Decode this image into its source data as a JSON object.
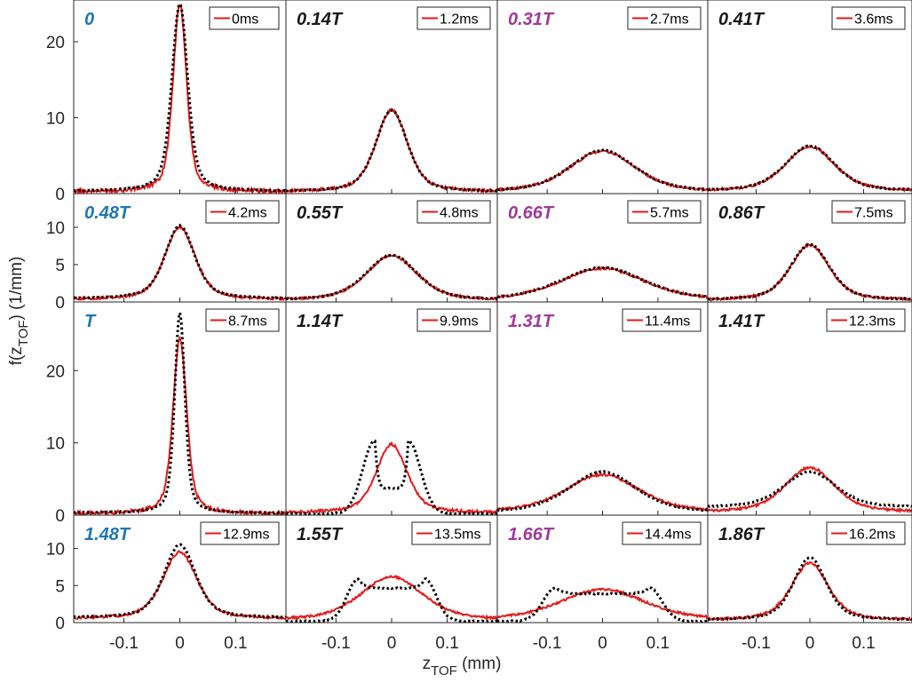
{
  "chart_data": {
    "type": "line",
    "xlabel": "z",
    "xlabel_sub": "TOF",
    "xlabel_unit": " (mm)",
    "ylabel": "f(z",
    "ylabel_sub": "TOF",
    "ylabel_unit": ") (1/mm)",
    "xlim": [
      -0.19,
      0.19
    ],
    "x_ticks": [
      -0.1,
      0,
      0.1
    ],
    "x_tick_labels": [
      "-0.1",
      "0",
      "0.1"
    ],
    "rows": [
      {
        "ylim": [
          0,
          25.5
        ],
        "y_ticks": [
          0,
          10,
          20
        ],
        "y_tick_labels": [
          "0",
          "10",
          "20"
        ]
      },
      {
        "ylim": [
          0,
          14.5
        ],
        "y_ticks": [
          0,
          5,
          10
        ],
        "y_tick_labels": [
          "0",
          "5",
          "10"
        ]
      },
      {
        "ylim": [
          0,
          29.5
        ],
        "y_ticks": [
          0,
          10,
          20
        ],
        "y_tick_labels": [
          "0",
          "10",
          "20"
        ]
      },
      {
        "ylim": [
          0,
          14.5
        ],
        "y_ticks": [
          0,
          5,
          10
        ],
        "y_tick_labels": [
          "0",
          "5",
          "10"
        ]
      }
    ],
    "series_style": {
      "measured": {
        "color": "#e31a1c",
        "dash": "none"
      },
      "simulated": {
        "color": "#000000",
        "dash": "dotted"
      }
    },
    "label_colors": {
      "blue": "#1f77b4",
      "black": "#1a1a1a",
      "purple": "#a0399a"
    },
    "panels": [
      {
        "row": 0,
        "col": 0,
        "label": "0",
        "label_color": "blue",
        "legend": "0ms",
        "meas": {
          "peak": 25,
          "width": 0.012,
          "base": 0.25
        },
        "sim": {
          "peak": 25,
          "width": 0.014,
          "base": 0.3
        }
      },
      {
        "row": 0,
        "col": 1,
        "label": "0.14T",
        "label_color": "black",
        "legend": "1.2ms",
        "meas": {
          "peak": 11,
          "width": 0.028,
          "base": 0.2
        },
        "sim": {
          "peak": 11,
          "width": 0.028,
          "base": 0.2
        }
      },
      {
        "row": 0,
        "col": 2,
        "label": "0.31T",
        "label_color": "purple",
        "legend": "2.7ms",
        "meas": {
          "peak": 5.6,
          "width": 0.058,
          "base": 0.2
        },
        "sim": {
          "peak": 5.7,
          "width": 0.058,
          "base": 0.2
        }
      },
      {
        "row": 0,
        "col": 3,
        "label": "0.41T",
        "label_color": "black",
        "legend": "3.6ms",
        "meas": {
          "peak": 6.2,
          "width": 0.045,
          "base": 0.3
        },
        "sim": {
          "peak": 6.3,
          "width": 0.045,
          "base": 0.3
        }
      },
      {
        "row": 1,
        "col": 0,
        "label": "0.48T",
        "label_color": "blue",
        "legend": "4.2ms",
        "meas": {
          "peak": 10,
          "width": 0.027,
          "base": 0.3
        },
        "sim": {
          "peak": 10.2,
          "width": 0.026,
          "base": 0.4
        }
      },
      {
        "row": 1,
        "col": 1,
        "label": "0.55T",
        "label_color": "black",
        "legend": "4.8ms",
        "meas": {
          "peak": 6.2,
          "width": 0.045,
          "base": 0.2
        },
        "sim": {
          "peak": 6.3,
          "width": 0.045,
          "base": 0.2
        }
      },
      {
        "row": 1,
        "col": 2,
        "label": "0.66T",
        "label_color": "purple",
        "legend": "5.7ms",
        "meas": {
          "peak": 4.5,
          "width": 0.075,
          "base": 0.2
        },
        "sim": {
          "peak": 4.6,
          "width": 0.075,
          "base": 0.2
        }
      },
      {
        "row": 1,
        "col": 3,
        "label": "0.86T",
        "label_color": "black",
        "legend": "7.5ms",
        "meas": {
          "peak": 7.6,
          "width": 0.036,
          "base": 0.2
        },
        "sim": {
          "peak": 7.7,
          "width": 0.036,
          "base": 0.2
        }
      },
      {
        "row": 2,
        "col": 0,
        "label": "T",
        "label_color": "blue",
        "legend": "8.7ms",
        "meas": {
          "peak": 24.5,
          "width": 0.012,
          "base": 0.2
        },
        "sim": {
          "peak": 28,
          "width": 0.009,
          "base": 0.3
        }
      },
      {
        "row": 2,
        "col": 1,
        "label": "1.14T",
        "label_color": "black",
        "legend": "9.9ms",
        "meas": {
          "peak": 9.8,
          "width": 0.027,
          "base": 0.3
        },
        "sim": {
          "peak": 10.3,
          "width": 0.022,
          "base": 0.2,
          "flat_half": 0.03,
          "shoulder": 0.35
        }
      },
      {
        "row": 2,
        "col": 2,
        "label": "1.31T",
        "label_color": "purple",
        "legend": "11.4ms",
        "meas": {
          "peak": 5.6,
          "width": 0.065,
          "base": 0.4
        },
        "sim": {
          "peak": 6.0,
          "width": 0.06,
          "base": 0.3
        }
      },
      {
        "row": 2,
        "col": 3,
        "label": "1.41T",
        "label_color": "black",
        "legend": "12.3ms",
        "meas": {
          "peak": 6.6,
          "width": 0.045,
          "base": 0.4
        },
        "sim": {
          "peak": 6.0,
          "width": 0.048,
          "base": 1.0
        }
      },
      {
        "row": 3,
        "col": 0,
        "label": "1.48T",
        "label_color": "blue",
        "legend": "12.9ms",
        "meas": {
          "peak": 9.5,
          "width": 0.03,
          "base": 0.5
        },
        "sim": {
          "peak": 10.5,
          "width": 0.028,
          "base": 0.6
        }
      },
      {
        "row": 3,
        "col": 1,
        "label": "1.55T",
        "label_color": "black",
        "legend": "13.5ms",
        "meas": {
          "peak": 6.2,
          "width": 0.055,
          "base": 0.3
        },
        "sim": {
          "peak": 5.9,
          "width": 0.02,
          "base": 0.2,
          "flat_half": 0.06,
          "shoulder": 0.78
        }
      },
      {
        "row": 3,
        "col": 2,
        "label": "1.66T",
        "label_color": "purple",
        "legend": "14.4ms",
        "meas": {
          "peak": 4.5,
          "width": 0.075,
          "base": 0.3
        },
        "sim": {
          "peak": 4.7,
          "width": 0.022,
          "base": 0.2,
          "flat_half": 0.085,
          "shoulder": 0.82
        }
      },
      {
        "row": 3,
        "col": 3,
        "label": "1.86T",
        "label_color": "black",
        "legend": "16.2ms",
        "meas": {
          "peak": 8.0,
          "width": 0.034,
          "base": 0.3
        },
        "sim": {
          "peak": 8.8,
          "width": 0.03,
          "base": 0.3
        }
      }
    ]
  }
}
